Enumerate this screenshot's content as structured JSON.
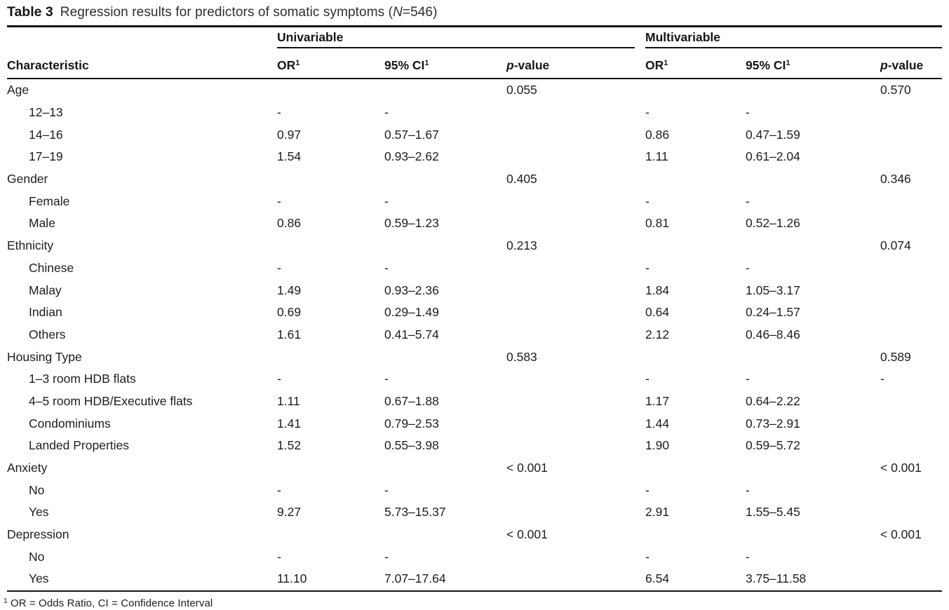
{
  "title": {
    "label": "Table 3",
    "text_pre": "Regression results for predictors of somatic symptoms (",
    "n_italic": "N",
    "text_post": "=546)"
  },
  "groups": {
    "univariable": "Univariable",
    "multivariable": "Multivariable"
  },
  "columns": {
    "characteristic": "Characteristic",
    "or": "OR",
    "ci": "95% CI",
    "sup": "1",
    "p_italic": "p",
    "p_rest": "-value"
  },
  "rows": [
    {
      "label": "Age",
      "indent": false,
      "u_or": "",
      "u_ci": "",
      "u_p": "0.055",
      "m_or": "",
      "m_ci": "",
      "m_p": "0.570"
    },
    {
      "label": "12–13",
      "indent": true,
      "u_or": "-",
      "u_ci": "-",
      "u_p": "",
      "m_or": "-",
      "m_ci": "-",
      "m_p": ""
    },
    {
      "label": "14–16",
      "indent": true,
      "u_or": "0.97",
      "u_ci": "0.57–1.67",
      "u_p": "",
      "m_or": "0.86",
      "m_ci": "0.47–1.59",
      "m_p": ""
    },
    {
      "label": "17–19",
      "indent": true,
      "u_or": "1.54",
      "u_ci": "0.93–2.62",
      "u_p": "",
      "m_or": "1.11",
      "m_ci": "0.61–2.04",
      "m_p": ""
    },
    {
      "label": "Gender",
      "indent": false,
      "u_or": "",
      "u_ci": "",
      "u_p": "0.405",
      "m_or": "",
      "m_ci": "",
      "m_p": "0.346"
    },
    {
      "label": "Female",
      "indent": true,
      "u_or": "-",
      "u_ci": "-",
      "u_p": "",
      "m_or": "-",
      "m_ci": "-",
      "m_p": ""
    },
    {
      "label": "Male",
      "indent": true,
      "u_or": "0.86",
      "u_ci": "0.59–1.23",
      "u_p": "",
      "m_or": "0.81",
      "m_ci": "0.52–1.26",
      "m_p": ""
    },
    {
      "label": "Ethnicity",
      "indent": false,
      "u_or": "",
      "u_ci": "",
      "u_p": "0.213",
      "m_or": "",
      "m_ci": "",
      "m_p": "0.074"
    },
    {
      "label": "Chinese",
      "indent": true,
      "u_or": "-",
      "u_ci": "-",
      "u_p": "",
      "m_or": "-",
      "m_ci": "-",
      "m_p": ""
    },
    {
      "label": "Malay",
      "indent": true,
      "u_or": "1.49",
      "u_ci": "0.93–2.36",
      "u_p": "",
      "m_or": "1.84",
      "m_ci": "1.05–3.17",
      "m_p": ""
    },
    {
      "label": "Indian",
      "indent": true,
      "u_or": "0.69",
      "u_ci": "0.29–1.49",
      "u_p": "",
      "m_or": "0.64",
      "m_ci": "0.24–1.57",
      "m_p": ""
    },
    {
      "label": "Others",
      "indent": true,
      "u_or": "1.61",
      "u_ci": "0.41–5.74",
      "u_p": "",
      "m_or": "2.12",
      "m_ci": "0.46–8.46",
      "m_p": ""
    },
    {
      "label": "Housing Type",
      "indent": false,
      "u_or": "",
      "u_ci": "",
      "u_p": "0.583",
      "m_or": "",
      "m_ci": "",
      "m_p": "0.589"
    },
    {
      "label": "1–3 room HDB flats",
      "indent": true,
      "u_or": "-",
      "u_ci": "-",
      "u_p": "",
      "m_or": "-",
      "m_ci": "-",
      "m_p": "-"
    },
    {
      "label": "4–5 room HDB/Executive flats",
      "indent": true,
      "u_or": "1.11",
      "u_ci": "0.67–1.88",
      "u_p": "",
      "m_or": "1.17",
      "m_ci": "0.64–2.22",
      "m_p": ""
    },
    {
      "label": "Condominiums",
      "indent": true,
      "u_or": "1.41",
      "u_ci": "0.79–2.53",
      "u_p": "",
      "m_or": "1.44",
      "m_ci": "0.73–2.91",
      "m_p": ""
    },
    {
      "label": "Landed Properties",
      "indent": true,
      "u_or": "1.52",
      "u_ci": "0.55–3.98",
      "u_p": "",
      "m_or": "1.90",
      "m_ci": "0.59–5.72",
      "m_p": ""
    },
    {
      "label": "Anxiety",
      "indent": false,
      "u_or": "",
      "u_ci": "",
      "u_p": "< 0.001",
      "m_or": "",
      "m_ci": "",
      "m_p": "< 0.001"
    },
    {
      "label": "No",
      "indent": true,
      "u_or": "-",
      "u_ci": "-",
      "u_p": "",
      "m_or": "-",
      "m_ci": "-",
      "m_p": ""
    },
    {
      "label": "Yes",
      "indent": true,
      "u_or": "9.27",
      "u_ci": "5.73–15.37",
      "u_p": "",
      "m_or": "2.91",
      "m_ci": "1.55–5.45",
      "m_p": ""
    },
    {
      "label": "Depression",
      "indent": false,
      "u_or": "",
      "u_ci": "",
      "u_p": "< 0.001",
      "m_or": "",
      "m_ci": "",
      "m_p": "< 0.001"
    },
    {
      "label": "No",
      "indent": true,
      "u_or": "-",
      "u_ci": "-",
      "u_p": "",
      "m_or": "-",
      "m_ci": "-",
      "m_p": ""
    },
    {
      "label": "Yes",
      "indent": true,
      "u_or": "11.10",
      "u_ci": "7.07–17.64",
      "u_p": "",
      "m_or": "6.54",
      "m_ci": "3.75–11.58",
      "m_p": ""
    }
  ],
  "footnote": {
    "sup": "1",
    "text": "OR = Odds Ratio, CI = Confidence Interval"
  }
}
